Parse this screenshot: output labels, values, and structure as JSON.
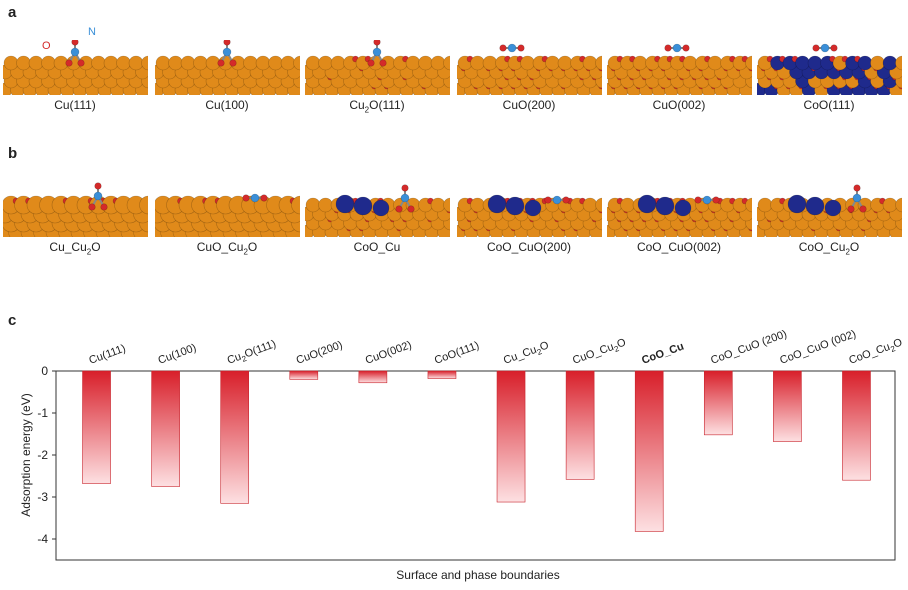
{
  "panels": {
    "a": "a",
    "b": "b",
    "c": "c"
  },
  "row_a_labels": [
    {
      "main": "Cu(111)",
      "sub": "",
      "tail": ""
    },
    {
      "main": "Cu(100)",
      "sub": "",
      "tail": ""
    },
    {
      "main": "Cu",
      "sub": "2",
      "tail": "O(111)"
    },
    {
      "main": "CuO(200)",
      "sub": "",
      "tail": ""
    },
    {
      "main": "CuO(002)",
      "sub": "",
      "tail": ""
    },
    {
      "main": "CoO(111)",
      "sub": "",
      "tail": ""
    }
  ],
  "row_b_labels": [
    {
      "main": "Cu_Cu",
      "sub": "2",
      "tail": "O"
    },
    {
      "main": "CuO_Cu",
      "sub": "2",
      "tail": "O"
    },
    {
      "main": "CoO_Cu",
      "sub": "",
      "tail": ""
    },
    {
      "main": "CoO_CuO(200)",
      "sub": "",
      "tail": ""
    },
    {
      "main": "CoO_CuO(002)",
      "sub": "",
      "tail": ""
    },
    {
      "main": "CoO_Cu",
      "sub": "2",
      "tail": "O"
    }
  ],
  "atom_labels": {
    "o": "O",
    "n": "N"
  },
  "colors": {
    "cu": "#e08a1a",
    "o": "#d42a2a",
    "n": "#3a8fd8",
    "co": "#1f2a8c",
    "bar_top": "#d81f2a",
    "bar_bottom": "#fde0e2"
  },
  "chart_data": {
    "type": "bar",
    "categories": [
      "Cu(111)",
      "Cu(100)",
      "Cu2O(111)",
      "CuO(200)",
      "CuO(002)",
      "CoO(111)",
      "Cu_Cu2O",
      "CuO_Cu2O",
      "CoO_Cu",
      "CoO_CuO (200)",
      "CoO_CuO (002)",
      "CoO_Cu2O"
    ],
    "category_display": [
      {
        "main": "Cu(111)",
        "sub": "",
        "tail": "",
        "bold": false
      },
      {
        "main": "Cu(100)",
        "sub": "",
        "tail": "",
        "bold": false
      },
      {
        "main": "Cu",
        "sub": "2",
        "tail": "O(111)",
        "bold": false
      },
      {
        "main": "CuO(200)",
        "sub": "",
        "tail": "",
        "bold": false
      },
      {
        "main": "CuO(002)",
        "sub": "",
        "tail": "",
        "bold": false
      },
      {
        "main": "CoO(111)",
        "sub": "",
        "tail": "",
        "bold": false
      },
      {
        "main": "Cu_Cu",
        "sub": "2",
        "tail": "O",
        "bold": false
      },
      {
        "main": "CuO_Cu",
        "sub": "2",
        "tail": "O",
        "bold": false
      },
      {
        "main": "CoO_Cu",
        "sub": "",
        "tail": "",
        "bold": true
      },
      {
        "main": "CoO_CuO (200)",
        "sub": "",
        "tail": "",
        "bold": false
      },
      {
        "main": "CoO_CuO (002)",
        "sub": "",
        "tail": "",
        "bold": false
      },
      {
        "main": "CoO_Cu",
        "sub": "2",
        "tail": "O",
        "bold": false
      }
    ],
    "values": [
      -2.68,
      -2.75,
      -3.15,
      -0.2,
      -0.28,
      -0.18,
      -3.12,
      -2.58,
      -3.82,
      -1.52,
      -1.68,
      -2.6
    ],
    "xlabel": "Surface and phase boundaries",
    "ylabel": "Adsorption energy (eV)",
    "ylim": [
      -4.5,
      0
    ],
    "yticks": [
      0,
      -1,
      -2,
      -3,
      -4
    ],
    "ytick_labels": [
      "0",
      "-1",
      "-2",
      "-3",
      "-4"
    ],
    "grid": false
  }
}
